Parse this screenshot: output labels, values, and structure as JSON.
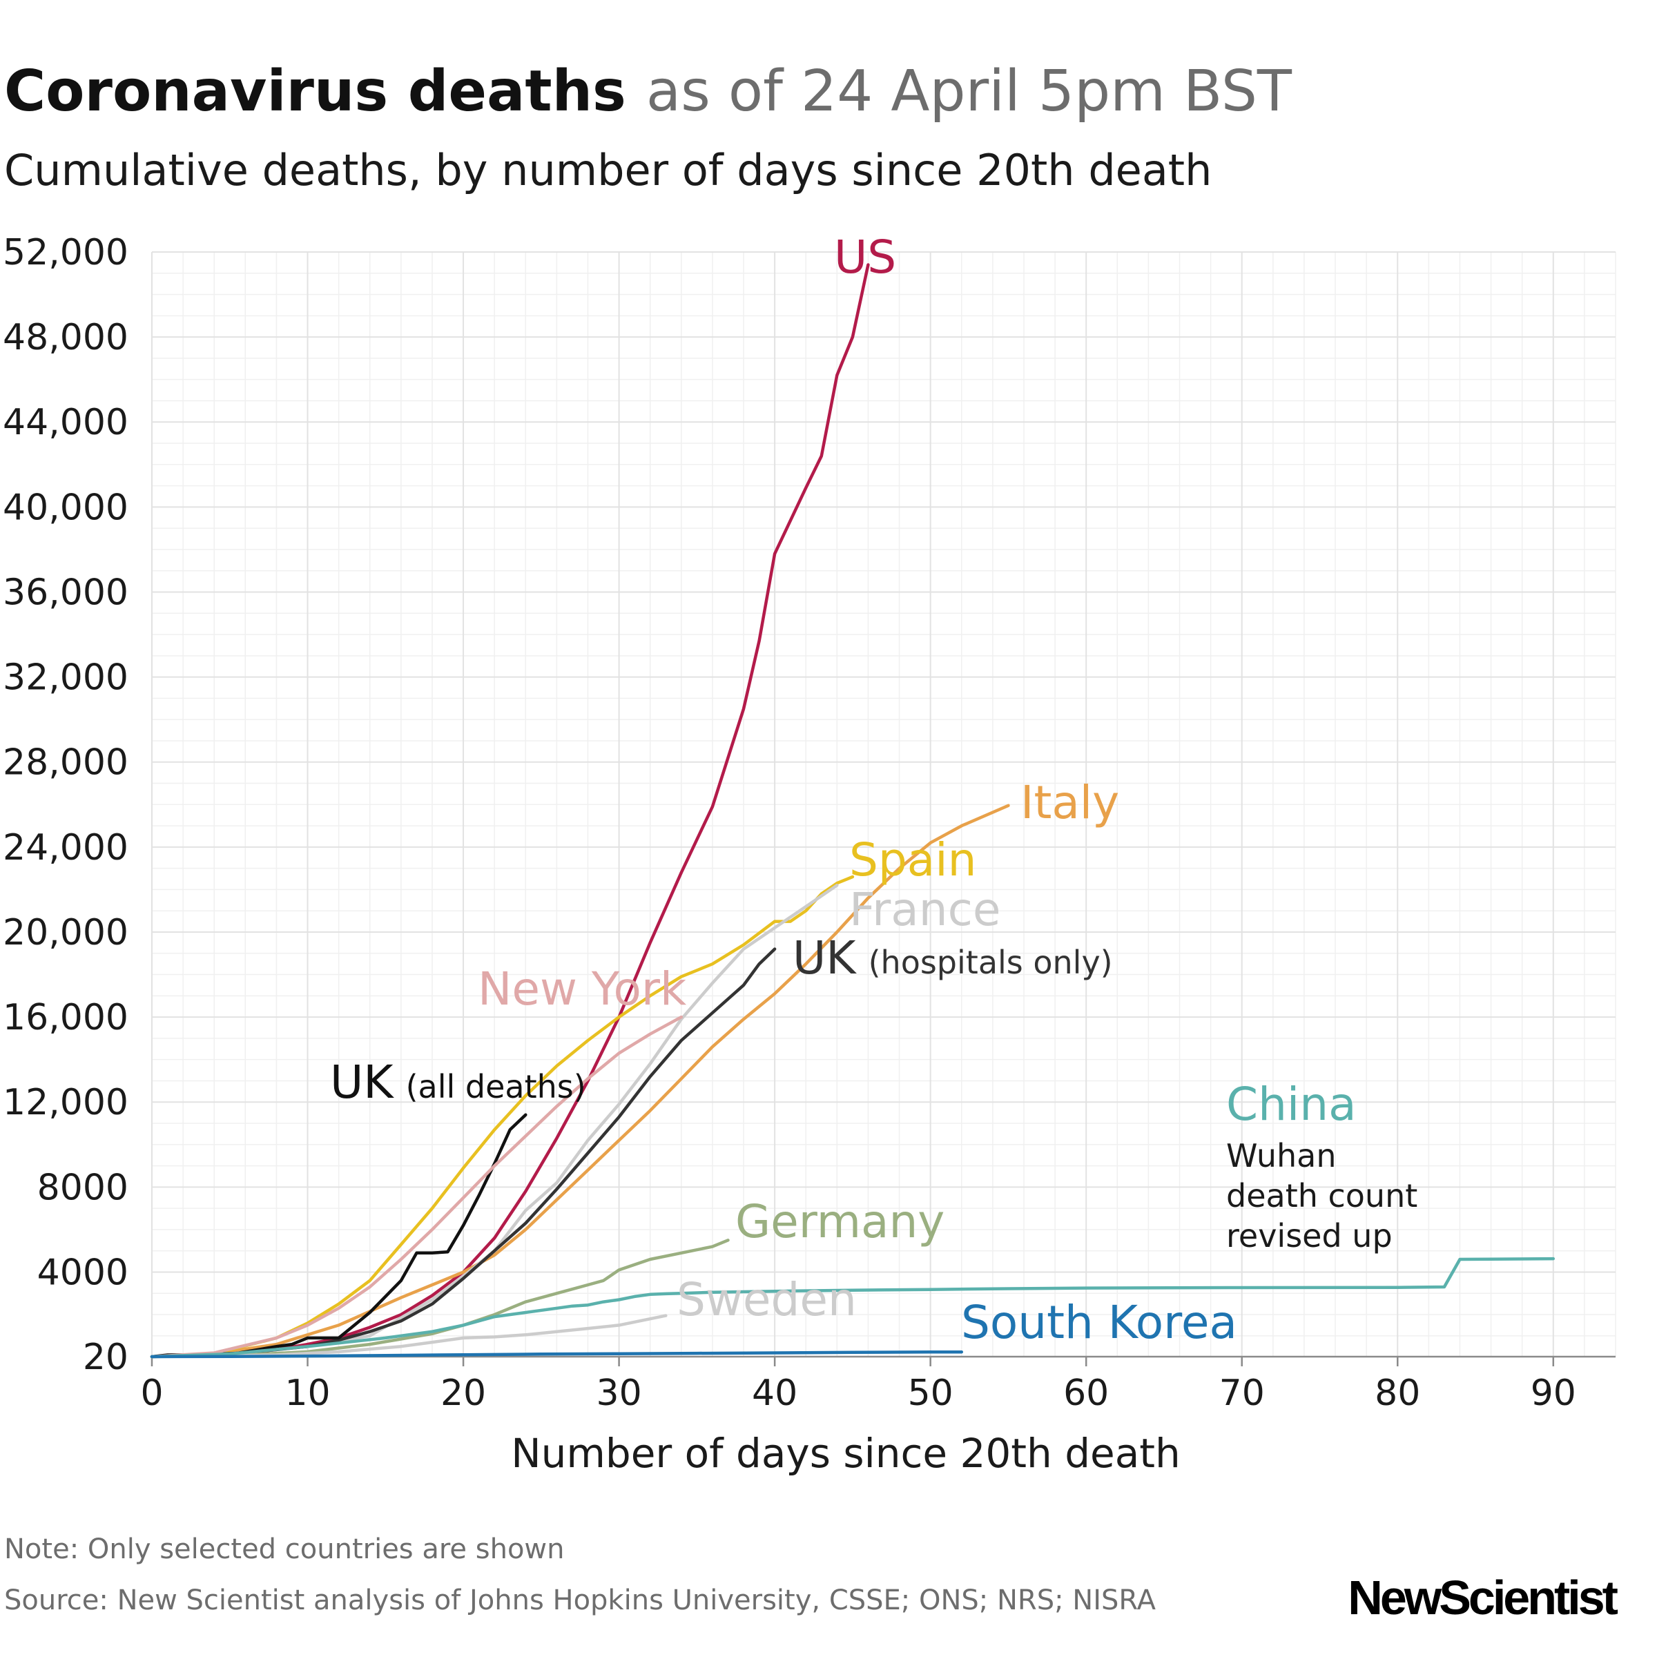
{
  "header": {
    "title_bold": "Coronavirus deaths",
    "title_light": "as of 24 April 5pm BST",
    "subtitle": "Cumulative deaths, by number of days since 20th death"
  },
  "footer": {
    "note": "Note: Only selected countries are shown",
    "source": "Source: New Scientist analysis of Johns Hopkins University, CSSE; ONS; NRS; NISRA",
    "logo": "NewScientist"
  },
  "annotation": {
    "lines": [
      "Wuhan",
      "death count",
      "revised up"
    ]
  },
  "chart_data": {
    "type": "line",
    "title": "Coronavirus deaths as of 24 April 5pm BST",
    "subtitle": "Cumulative deaths, by number of days since 20th death",
    "xlabel": "Number of days since 20th death",
    "ylabel": "",
    "xlim": [
      0,
      94
    ],
    "ylim": [
      20,
      52000
    ],
    "x_ticks": [
      0,
      10,
      20,
      30,
      40,
      50,
      60,
      70,
      80,
      90
    ],
    "y_ticks": [
      20,
      4000,
      8000,
      12000,
      16000,
      20000,
      24000,
      28000,
      32000,
      36000,
      40000,
      44000,
      48000,
      52000
    ],
    "y_tick_labels": [
      "20",
      "4000",
      "8000",
      "12,000",
      "16,000",
      "20,000",
      "24,000",
      "28,000",
      "32,000",
      "36,000",
      "40,000",
      "44,000",
      "48,000",
      "52,000"
    ],
    "grid": true,
    "series": [
      {
        "name": "US",
        "label_main": "US",
        "label_sub": "",
        "color": "#b31b4a",
        "x": [
          0,
          2,
          4,
          6,
          8,
          10,
          12,
          14,
          16,
          18,
          20,
          22,
          24,
          26,
          28,
          30,
          32,
          34,
          36,
          38,
          39,
          40,
          42,
          43,
          44,
          45,
          46
        ],
        "y": [
          20,
          60,
          110,
          200,
          350,
          600,
          900,
          1400,
          2000,
          2900,
          4000,
          5600,
          7800,
          10300,
          13000,
          16000,
          19500,
          22800,
          25900,
          30500,
          33700,
          37800,
          40900,
          42400,
          46200,
          48000,
          51400
        ]
      },
      {
        "name": "Italy",
        "label_main": "Italy",
        "label_sub": "",
        "color": "#e8a14a",
        "x": [
          0,
          4,
          8,
          12,
          16,
          18,
          20,
          22,
          24,
          26,
          28,
          30,
          32,
          34,
          36,
          38,
          40,
          42,
          44,
          46,
          48,
          50,
          52,
          55
        ],
        "y": [
          20,
          150,
          600,
          1500,
          2800,
          3400,
          4000,
          4800,
          6000,
          7400,
          8800,
          10200,
          11600,
          13100,
          14600,
          15900,
          17100,
          18500,
          20000,
          21600,
          23000,
          24200,
          25000,
          25950
        ]
      },
      {
        "name": "Spain",
        "label_main": "Spain",
        "label_sub": "",
        "color": "#e8c020",
        "x": [
          0,
          4,
          8,
          10,
          12,
          14,
          16,
          18,
          20,
          22,
          24,
          26,
          28,
          30,
          32,
          34,
          35,
          36,
          38,
          40,
          41,
          42,
          43,
          44,
          45
        ],
        "y": [
          20,
          150,
          900,
          1600,
          2500,
          3600,
          5300,
          7000,
          8900,
          10700,
          12300,
          13700,
          14900,
          16000,
          17000,
          17900,
          18200,
          18500,
          19400,
          20500,
          20500,
          21000,
          21800,
          22300,
          22600
        ]
      },
      {
        "name": "France",
        "label_main": "France",
        "label_sub": "",
        "color": "#cccccc",
        "x": [
          0,
          6,
          10,
          14,
          18,
          20,
          22,
          24,
          26,
          28,
          30,
          32,
          34,
          36,
          38,
          40,
          42,
          44
        ],
        "y": [
          20,
          200,
          500,
          1000,
          2700,
          3800,
          5000,
          6900,
          8200,
          10200,
          11900,
          13800,
          15900,
          17600,
          19200,
          20200,
          21200,
          22200
        ]
      },
      {
        "name": "UK (hospitals only)",
        "label_main": "UK",
        "label_sub": "(hospitals only)",
        "color": "#333333",
        "x": [
          0,
          6,
          10,
          12,
          14,
          16,
          18,
          20,
          22,
          24,
          26,
          28,
          30,
          32,
          34,
          36,
          38,
          39,
          40
        ],
        "y": [
          20,
          200,
          500,
          800,
          1200,
          1700,
          2500,
          3700,
          5000,
          6300,
          7900,
          9600,
          11300,
          13200,
          14900,
          16200,
          17500,
          18500,
          19200
        ]
      },
      {
        "name": "UK (all deaths)",
        "label_main": "UK",
        "label_sub": "(all deaths)",
        "color": "#111111",
        "x": [
          0,
          1,
          5,
          8,
          9,
          10,
          12,
          14,
          16,
          17,
          18,
          19,
          20,
          21,
          22,
          23,
          24
        ],
        "y": [
          20,
          100,
          120,
          500,
          600,
          900,
          900,
          2100,
          3600,
          4900,
          4900,
          4950,
          6200,
          7600,
          9100,
          10700,
          11400
        ]
      },
      {
        "name": "New York",
        "label_main": "New York",
        "label_sub": "",
        "color": "#e0a8a8",
        "x": [
          0,
          4,
          8,
          10,
          12,
          14,
          16,
          18,
          20,
          22,
          24,
          26,
          28,
          30,
          32,
          34
        ],
        "y": [
          20,
          200,
          900,
          1500,
          2300,
          3300,
          4600,
          6000,
          7500,
          9000,
          10400,
          11800,
          13100,
          14300,
          15200,
          16000
        ]
      },
      {
        "name": "Germany",
        "label_main": "Germany",
        "label_sub": "",
        "color": "#9aaf80",
        "x": [
          0,
          6,
          10,
          14,
          18,
          20,
          22,
          24,
          26,
          28,
          29,
          30,
          32,
          34,
          36,
          37
        ],
        "y": [
          20,
          100,
          250,
          600,
          1100,
          1500,
          2000,
          2600,
          3000,
          3400,
          3600,
          4100,
          4600,
          4900,
          5200,
          5500
        ]
      },
      {
        "name": "Sweden",
        "label_main": "Sweden",
        "label_sub": "",
        "color": "#cccccc",
        "x": [
          0,
          8,
          12,
          16,
          18,
          20,
          22,
          24,
          26,
          28,
          30,
          32,
          33
        ],
        "y": [
          20,
          100,
          250,
          500,
          700,
          900,
          950,
          1050,
          1200,
          1350,
          1500,
          1800,
          1950
        ]
      },
      {
        "name": "China",
        "label_main": "China",
        "label_sub": "",
        "color": "#5ab1ac",
        "x": [
          0,
          5,
          10,
          15,
          18,
          20,
          22,
          24,
          26,
          27,
          28,
          29,
          30,
          31,
          32,
          33,
          34,
          36,
          40,
          45,
          50,
          55,
          60,
          70,
          80,
          83,
          84,
          90
        ],
        "y": [
          20,
          150,
          500,
          900,
          1200,
          1500,
          1900,
          2100,
          2300,
          2400,
          2450,
          2600,
          2700,
          2850,
          2950,
          2980,
          3000,
          3050,
          3100,
          3150,
          3180,
          3220,
          3250,
          3270,
          3280,
          3300,
          4600,
          4630
        ]
      },
      {
        "name": "South Korea",
        "label_main": "South Korea",
        "label_sub": "",
        "color": "#1f74b0",
        "x": [
          0,
          5,
          10,
          15,
          20,
          25,
          30,
          35,
          40,
          45,
          50,
          52
        ],
        "y": [
          20,
          30,
          50,
          80,
          110,
          140,
          160,
          180,
          200,
          220,
          240,
          240
        ]
      }
    ]
  }
}
